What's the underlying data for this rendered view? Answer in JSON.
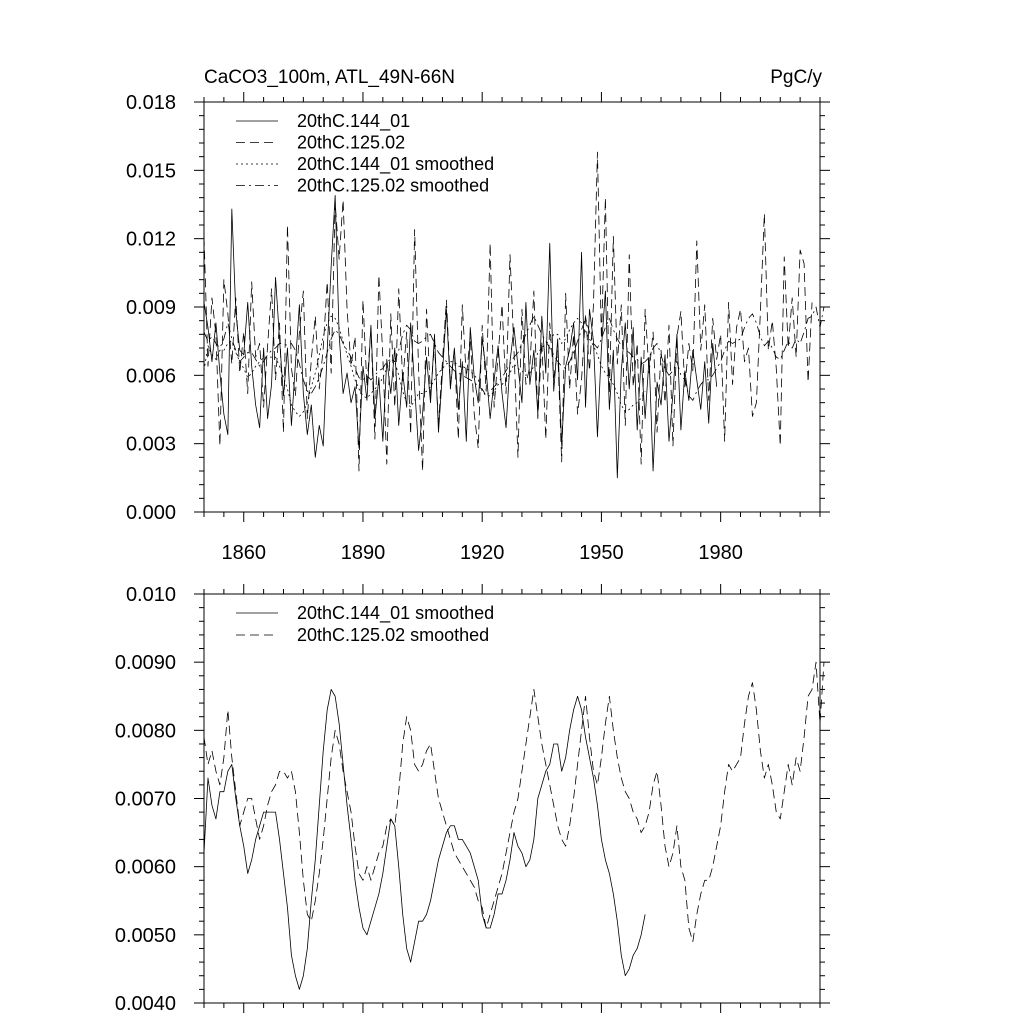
{
  "chart_data": [
    {
      "type": "line",
      "title": "CaCO3_100m, ATL_49N-66N",
      "units": "PgC/y",
      "xlabel": "",
      "ylabel": "",
      "xlim": [
        1850,
        2005
      ],
      "ylim": [
        0.0,
        0.018
      ],
      "xticks": [
        1860,
        1890,
        1920,
        1950,
        1980
      ],
      "xtick_labels": [
        "1860",
        "1890",
        "1920",
        "1950",
        "1980"
      ],
      "yticks": [
        0.0,
        0.003,
        0.006,
        0.009,
        0.012,
        0.015,
        0.018
      ],
      "ytick_labels": [
        "0.000",
        "0.003",
        "0.006",
        "0.009",
        "0.012",
        "0.015",
        "0.018"
      ],
      "legend_position": "top-left",
      "series": [
        {
          "name": "20thC.144_01",
          "style": "solid",
          "x_start": 1850,
          "values": [
            0.0092,
            0.0081,
            0.0066,
            0.0083,
            0.0061,
            0.0043,
            0.0034,
            0.0133,
            0.0088,
            0.0071,
            0.0069,
            0.0092,
            0.0064,
            0.0047,
            0.0037,
            0.0072,
            0.0041,
            0.0056,
            0.0103,
            0.0076,
            0.0051,
            0.0072,
            0.0038,
            0.0065,
            0.0091,
            0.0052,
            0.0034,
            0.0047,
            0.0024,
            0.0038,
            0.0029,
            0.0071,
            0.0108,
            0.0139,
            0.0078,
            0.0052,
            0.0061,
            0.0048,
            0.0055,
            0.0028,
            0.0064,
            0.0049,
            0.0082,
            0.0041,
            0.0059,
            0.0031,
            0.0067,
            0.0052,
            0.0072,
            0.0038,
            0.0061,
            0.0046,
            0.0083,
            0.0055,
            0.0027,
            0.0043,
            0.0068,
            0.0048,
            0.0078,
            0.0035,
            0.0061,
            0.0089,
            0.0054,
            0.0072,
            0.0045,
            0.0066,
            0.0031,
            0.0081,
            0.0059,
            0.0048,
            0.0076,
            0.0062,
            0.0041,
            0.0058,
            0.0073,
            0.0052,
            0.0037,
            0.0066,
            0.0081,
            0.0064,
            0.0048,
            0.0092,
            0.0056,
            0.0071,
            0.0043,
            0.0086,
            0.0061,
            0.0118,
            0.0053,
            0.0076,
            0.0029,
            0.0064,
            0.0071,
            0.0083,
            0.0058,
            0.0114,
            0.0046,
            0.0089,
            0.0075,
            0.0033,
            0.0072,
            0.0097,
            0.0045,
            0.0071,
            0.0015,
            0.0062,
            0.0083,
            0.0054,
            0.0081,
            0.0036,
            0.0068,
            0.0041,
            0.0068,
            0.0018,
            0.0057,
            0.0047,
            0.0069,
            0.0031,
            0.0052,
            0.0078,
            0.0036,
            0.0062,
            0.0049,
            0.0071,
            0.0058,
            0.0045,
            0.0066,
            0.0039,
            0.0074,
            0.0055
          ]
        },
        {
          "name": "20thC.125.02",
          "style": "dashed",
          "x_start": 1850,
          "values": [
            0.0121,
            0.0064,
            0.0094,
            0.0078,
            0.0029,
            0.0102,
            0.0087,
            0.0065,
            0.0094,
            0.0061,
            0.0079,
            0.0052,
            0.0101,
            0.0068,
            0.0074,
            0.0046,
            0.0073,
            0.0098,
            0.0058,
            0.0083,
            0.0035,
            0.0126,
            0.0063,
            0.0051,
            0.0079,
            0.0097,
            0.0041,
            0.0067,
            0.0086,
            0.0054,
            0.0072,
            0.0101,
            0.0061,
            0.0136,
            0.0111,
            0.0137,
            0.0089,
            0.0064,
            0.0077,
            0.0018,
            0.0093,
            0.0055,
            0.0081,
            0.0032,
            0.0104,
            0.0068,
            0.0021,
            0.0087,
            0.0046,
            0.0098,
            0.0057,
            0.0079,
            0.0034,
            0.0124,
            0.0062,
            0.0018,
            0.0089,
            0.0051,
            0.0074,
            0.0038,
            0.0066,
            0.0093,
            0.0056,
            0.0071,
            0.0032,
            0.0091,
            0.0059,
            0.0077,
            0.0043,
            0.0028,
            0.0082,
            0.0053,
            0.0118,
            0.0046,
            0.0069,
            0.0091,
            0.0052,
            0.0113,
            0.0071,
            0.0024,
            0.0089,
            0.0056,
            0.0064,
            0.0097,
            0.0041,
            0.0075,
            0.0032,
            0.0083,
            0.0059,
            0.0071,
            0.0022,
            0.0096,
            0.0054,
            0.0078,
            0.0043,
            0.0058,
            0.0087,
            0.0062,
            0.0091,
            0.0158,
            0.0076,
            0.0138,
            0.0052,
            0.0121,
            0.0065,
            0.0091,
            0.0038,
            0.0113,
            0.0055,
            0.0074,
            0.0021,
            0.0089,
            0.0061,
            0.0079,
            0.0035,
            0.0071,
            0.0048,
            0.0082,
            0.0029,
            0.0077,
            0.0088,
            0.0055,
            0.0074,
            0.0062,
            0.0119,
            0.0071,
            0.0091,
            0.0049,
            0.0085,
            0.0067,
            0.0078,
            0.0031,
            0.0092,
            0.0056,
            0.0081,
            0.0089,
            0.0066,
            0.0072,
            0.0042,
            0.0048,
            0.0088,
            0.0131,
            0.0071,
            0.0084,
            0.0063,
            0.0029,
            0.0112,
            0.0072,
            0.0094,
            0.0068,
            0.0115,
            0.0109,
            0.0057,
            0.0092
          ]
        },
        {
          "name": "20thC.144_01 smoothed",
          "style": "dotted",
          "x_start": 1850,
          "values": [
            0.0062,
            0.0073,
            0.0069,
            0.0067,
            0.0071,
            0.0071,
            0.0074,
            0.0075,
            0.007,
            0.0066,
            0.0063,
            0.0059,
            0.0061,
            0.0064,
            0.0066,
            0.0068,
            0.0068,
            0.0068,
            0.0068,
            0.0064,
            0.0059,
            0.0054,
            0.0047,
            0.0044,
            0.0042,
            0.0044,
            0.0048,
            0.0055,
            0.0061,
            0.0069,
            0.0077,
            0.0083,
            0.0086,
            0.0085,
            0.0081,
            0.0075,
            0.0069,
            0.0064,
            0.0058,
            0.0054,
            0.0051,
            0.005,
            0.0052,
            0.0054,
            0.0056,
            0.0059,
            0.0063,
            0.0067,
            0.0066,
            0.006,
            0.0053,
            0.0048,
            0.0046,
            0.0049,
            0.0052,
            0.0052,
            0.0053,
            0.0055,
            0.0058,
            0.0061,
            0.0063,
            0.0065,
            0.0066,
            0.0066,
            0.0064,
            0.0064,
            0.0063,
            0.0062,
            0.006,
            0.0058,
            0.0053,
            0.0051,
            0.0051,
            0.0053,
            0.0056,
            0.0056,
            0.0058,
            0.0061,
            0.0065,
            0.0063,
            0.0062,
            0.006,
            0.0061,
            0.0064,
            0.007,
            0.0072,
            0.0074,
            0.0075,
            0.0078,
            0.0078,
            0.0074,
            0.0076,
            0.008,
            0.0083,
            0.0085,
            0.0083,
            0.0079,
            0.0076,
            0.0073,
            0.0069,
            0.0064,
            0.0061,
            0.0059,
            0.0056,
            0.0052,
            0.0047,
            0.0044,
            0.0045,
            0.0047,
            0.0048,
            0.005,
            0.0053
          ]
        },
        {
          "name": "20thC.125.02 smoothed",
          "style": "dash-dot",
          "x_start": 1850,
          "values": [
            0.0079,
            0.0075,
            0.0077,
            0.0074,
            0.0072,
            0.0076,
            0.0083,
            0.0076,
            0.0071,
            0.0066,
            0.0068,
            0.007,
            0.007,
            0.0067,
            0.0064,
            0.0066,
            0.0069,
            0.0071,
            0.0072,
            0.0074,
            0.0074,
            0.0073,
            0.0074,
            0.0071,
            0.0065,
            0.0058,
            0.0053,
            0.0052,
            0.0055,
            0.0059,
            0.0064,
            0.007,
            0.0076,
            0.008,
            0.0078,
            0.0074,
            0.0071,
            0.0068,
            0.0063,
            0.0059,
            0.0058,
            0.006,
            0.0058,
            0.006,
            0.0062,
            0.0063,
            0.0066,
            0.0067,
            0.0066,
            0.0071,
            0.0078,
            0.0082,
            0.008,
            0.0075,
            0.0074,
            0.0075,
            0.0077,
            0.0078,
            0.0074,
            0.007,
            0.0068,
            0.0066,
            0.0064,
            0.0062,
            0.0061,
            0.006,
            0.0059,
            0.0058,
            0.0057,
            0.0055,
            0.0054,
            0.0051,
            0.0053,
            0.0055,
            0.0057,
            0.0059,
            0.0062,
            0.0065,
            0.0068,
            0.007,
            0.0074,
            0.0078,
            0.0082,
            0.0086,
            0.0082,
            0.0078,
            0.0075,
            0.0072,
            0.0069,
            0.0066,
            0.0064,
            0.0063,
            0.0066,
            0.007,
            0.0075,
            0.008,
            0.0085,
            0.0079,
            0.0074,
            0.0072,
            0.0076,
            0.0081,
            0.0085,
            0.008,
            0.0076,
            0.0073,
            0.0071,
            0.007,
            0.0068,
            0.0067,
            0.0065,
            0.0066,
            0.0068,
            0.0072,
            0.0074,
            0.0069,
            0.0063,
            0.006,
            0.0062,
            0.0066,
            0.006,
            0.0058,
            0.0051,
            0.0049,
            0.0053,
            0.0056,
            0.0058,
            0.0058,
            0.006,
            0.0063,
            0.0066,
            0.0071,
            0.0075,
            0.0074,
            0.0075,
            0.0076,
            0.0081,
            0.0085,
            0.0087,
            0.0083,
            0.0077,
            0.0073,
            0.0075,
            0.0072,
            0.0068,
            0.0067,
            0.0071,
            0.0075,
            0.0072,
            0.0076,
            0.0074,
            0.0079,
            0.0085,
            0.0086,
            0.009,
            0.0081,
            0.009
          ]
        }
      ]
    },
    {
      "type": "line",
      "title": "",
      "xlabel": "",
      "ylabel": "",
      "xlim": [
        1850,
        2005
      ],
      "ylim": [
        0.004,
        0.01
      ],
      "xticks": [
        1860,
        1890,
        1920,
        1950,
        1980
      ],
      "yticks": [
        0.004,
        0.005,
        0.006,
        0.007,
        0.008,
        0.009,
        0.01
      ],
      "ytick_labels": [
        "0.0040",
        "0.0050",
        "0.0060",
        "0.0070",
        "0.0080",
        "0.0090",
        "0.010"
      ],
      "legend_position": "top-left",
      "series": [
        {
          "name": "20thC.144_01 smoothed",
          "style": "solid",
          "x_start": 1850,
          "values": [
            0.0062,
            0.0073,
            0.0069,
            0.0067,
            0.0071,
            0.0071,
            0.0074,
            0.0075,
            0.007,
            0.0066,
            0.0063,
            0.0059,
            0.0061,
            0.0064,
            0.0066,
            0.0068,
            0.0068,
            0.0068,
            0.0068,
            0.0064,
            0.0059,
            0.0054,
            0.0047,
            0.0044,
            0.0042,
            0.0044,
            0.0048,
            0.0055,
            0.0061,
            0.0069,
            0.0077,
            0.0083,
            0.0086,
            0.0085,
            0.0081,
            0.0075,
            0.0069,
            0.0064,
            0.0058,
            0.0054,
            0.0051,
            0.005,
            0.0052,
            0.0054,
            0.0056,
            0.0059,
            0.0063,
            0.0067,
            0.0066,
            0.006,
            0.0053,
            0.0048,
            0.0046,
            0.0049,
            0.0052,
            0.0052,
            0.0053,
            0.0055,
            0.0058,
            0.0061,
            0.0063,
            0.0065,
            0.0066,
            0.0066,
            0.0064,
            0.0064,
            0.0063,
            0.0062,
            0.006,
            0.0058,
            0.0053,
            0.0051,
            0.0051,
            0.0053,
            0.0056,
            0.0056,
            0.0058,
            0.0061,
            0.0065,
            0.0063,
            0.0062,
            0.006,
            0.0061,
            0.0064,
            0.007,
            0.0072,
            0.0074,
            0.0075,
            0.0078,
            0.0078,
            0.0074,
            0.0076,
            0.008,
            0.0083,
            0.0085,
            0.0083,
            0.0079,
            0.0076,
            0.0073,
            0.0069,
            0.0064,
            0.0061,
            0.0059,
            0.0056,
            0.0052,
            0.0047,
            0.0044,
            0.0045,
            0.0047,
            0.0048,
            0.005,
            0.0053
          ]
        },
        {
          "name": "20thC.125.02 smoothed",
          "style": "dashed",
          "x_start": 1850,
          "values": [
            0.0079,
            0.0075,
            0.0077,
            0.0074,
            0.0072,
            0.0076,
            0.0083,
            0.0076,
            0.0071,
            0.0066,
            0.0068,
            0.007,
            0.007,
            0.0067,
            0.0064,
            0.0066,
            0.0069,
            0.0071,
            0.0072,
            0.0074,
            0.0074,
            0.0073,
            0.0074,
            0.0071,
            0.0065,
            0.0058,
            0.0053,
            0.0052,
            0.0055,
            0.0059,
            0.0064,
            0.007,
            0.0076,
            0.008,
            0.0078,
            0.0074,
            0.0071,
            0.0068,
            0.0063,
            0.0059,
            0.0058,
            0.006,
            0.0058,
            0.006,
            0.0062,
            0.0063,
            0.0066,
            0.0067,
            0.0066,
            0.0071,
            0.0078,
            0.0082,
            0.008,
            0.0075,
            0.0074,
            0.0075,
            0.0077,
            0.0078,
            0.0074,
            0.007,
            0.0068,
            0.0066,
            0.0064,
            0.0062,
            0.0061,
            0.006,
            0.0059,
            0.0058,
            0.0057,
            0.0055,
            0.0054,
            0.0051,
            0.0053,
            0.0055,
            0.0057,
            0.0059,
            0.0062,
            0.0065,
            0.0068,
            0.007,
            0.0074,
            0.0078,
            0.0082,
            0.0086,
            0.0082,
            0.0078,
            0.0075,
            0.0072,
            0.0069,
            0.0066,
            0.0064,
            0.0063,
            0.0066,
            0.007,
            0.0075,
            0.008,
            0.0085,
            0.0079,
            0.0074,
            0.0072,
            0.0076,
            0.0081,
            0.0085,
            0.008,
            0.0076,
            0.0073,
            0.0071,
            0.007,
            0.0068,
            0.0067,
            0.0065,
            0.0066,
            0.0068,
            0.0072,
            0.0074,
            0.0069,
            0.0063,
            0.006,
            0.0062,
            0.0066,
            0.006,
            0.0058,
            0.0051,
            0.0049,
            0.0053,
            0.0056,
            0.0058,
            0.0058,
            0.006,
            0.0063,
            0.0066,
            0.0071,
            0.0075,
            0.0074,
            0.0075,
            0.0076,
            0.0081,
            0.0085,
            0.0087,
            0.0083,
            0.0077,
            0.0073,
            0.0075,
            0.0072,
            0.0068,
            0.0067,
            0.0071,
            0.0075,
            0.0072,
            0.0076,
            0.0074,
            0.0079,
            0.0085,
            0.0086,
            0.009,
            0.0081,
            0.009
          ]
        }
      ]
    }
  ]
}
